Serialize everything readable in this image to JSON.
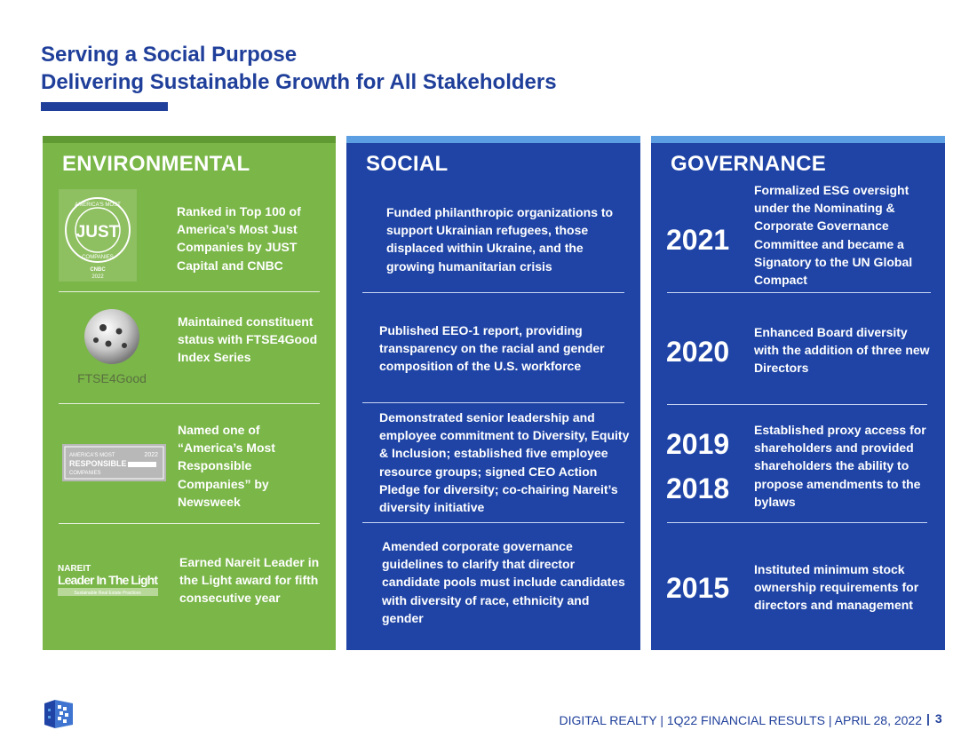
{
  "header": {
    "title_line1": "Serving a Social Purpose",
    "title_line2": "Delivering Sustainable Growth for All Stakeholders"
  },
  "environmental": {
    "heading": "ENVIRONMENTAL",
    "items": [
      {
        "text": "Ranked in Top 100 of America’s Most Just Companies by JUST Capital and CNBC",
        "logo": "just-companies-badge",
        "logo_text": {
          "ring_top": "AMERICA'S MOST",
          "center": "JUST",
          "ring_bottom": "COMPANIES",
          "brand": "CNBC",
          "year": "2022"
        }
      },
      {
        "text": "Maintained constituent status with FTSE4Good Index Series",
        "logo": "ftse4good-globe",
        "logo_text": {
          "name": "FTSE4Good"
        }
      },
      {
        "text": "Named one of “America’s Most Responsible Companies” by Newsweek",
        "logo": "newsweek-responsible-badge",
        "logo_text": {
          "line1": "AMERICA'S MOST",
          "line2": "RESPONSIBLE",
          "line3": "COMPANIES",
          "year": "2022"
        }
      },
      {
        "text": "Earned Nareit Leader in the Light award for fifth consecutive year",
        "logo": "nareit-leader-logo",
        "logo_text": {
          "line1": "NAREIT",
          "line2": "Leader In The Light",
          "line3": "Sustainable Real Estate Practices"
        }
      }
    ]
  },
  "social": {
    "heading": "SOCIAL",
    "items": [
      "Funded philanthropic organizations to support Ukrainian refugees, those displaced within Ukraine, and the growing humanitarian crisis",
      "Published EEO-1 report, providing transparency on the racial and gender composition of the U.S. workforce",
      "Demonstrated senior leadership and employee commitment to Diversity, Equity & Inclusion; established five employee resource groups; signed CEO Action Pledge for diversity; co-chairing Nareit’s diversity initiative",
      "Amended corporate governance guidelines to clarify that director candidate pools must include candidates with diversity of race, ethnicity and gender"
    ]
  },
  "governance": {
    "heading": "GOVERNANCE",
    "items": [
      {
        "years": [
          "2021"
        ],
        "text": "Formalized ESG oversight under the Nominating & Corporate Governance Committee and became a Signatory to the UN Global Compact"
      },
      {
        "years": [
          "2020"
        ],
        "text": "Enhanced Board diversity with the addition of three new Directors"
      },
      {
        "years": [
          "2019",
          "2018"
        ],
        "text": "Established proxy access for shareholders and provided shareholders the ability to propose amendments to the bylaws"
      },
      {
        "years": [
          "2015"
        ],
        "text": "Instituted minimum stock ownership requirements for directors and management"
      }
    ]
  },
  "footer": {
    "text": "DIGITAL REALTY | 1Q22 FINANCIAL RESULTS | APRIL 28, 2022",
    "page": "3",
    "logo": "digital-realty-logo"
  },
  "colors": {
    "title_blue": "#1f3f9a",
    "env_green": "#7ab648",
    "panel_blue": "#1f44a6",
    "accent_light_blue": "#5b9ee2"
  }
}
